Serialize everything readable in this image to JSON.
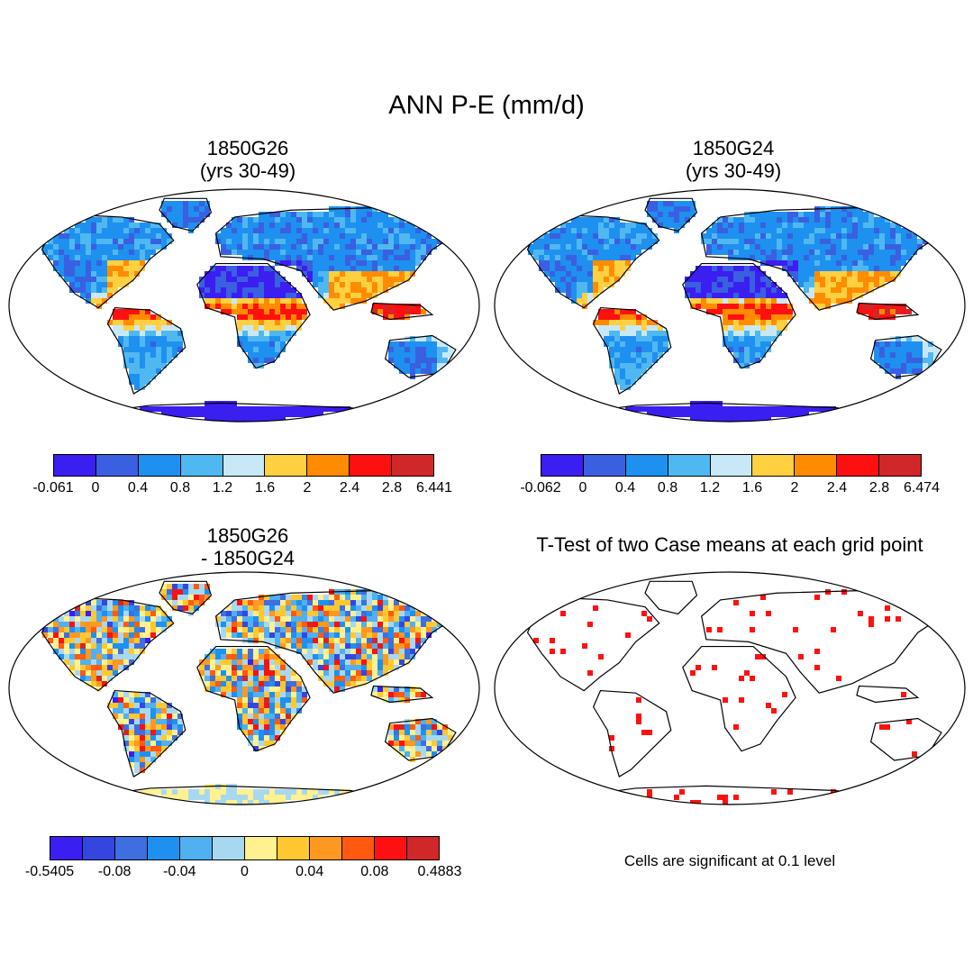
{
  "title": "ANN P-E (mm/d)",
  "panels": [
    {
      "id": "case1",
      "title_line1": "1850G26",
      "title_line2": "(yrs 30-49)"
    },
    {
      "id": "case2",
      "title_line1": "1850G24",
      "title_line2": "(yrs 30-49)"
    },
    {
      "id": "diff",
      "title_line1": "1850G26",
      "title_line2": "- 1850G24"
    },
    {
      "id": "ttest",
      "title_line1": "T-Test of two Case means at each grid point"
    }
  ],
  "colorbars": {
    "case1": {
      "colors": [
        "#3b1ef0",
        "#3a5fe0",
        "#1e90f0",
        "#50b8f0",
        "#c8e8f8",
        "#ffd040",
        "#ff8c00",
        "#ff1010",
        "#d02828"
      ],
      "labels": [
        "-0.061",
        "0",
        "0.4",
        "0.8",
        "1.2",
        "1.6",
        "2",
        "2.4",
        "2.8",
        "6.441"
      ]
    },
    "case2": {
      "colors": [
        "#3b1ef0",
        "#3a5fe0",
        "#1e90f0",
        "#50b8f0",
        "#c8e8f8",
        "#ffd040",
        "#ff8c00",
        "#ff1010",
        "#d02828"
      ],
      "labels": [
        "-0.062",
        "0",
        "0.4",
        "0.8",
        "1.2",
        "1.6",
        "2",
        "2.4",
        "2.8",
        "6.474"
      ]
    },
    "diff": {
      "colors": [
        "#3b1ef0",
        "#3546e0",
        "#3f6ee0",
        "#1e90f0",
        "#50b0f0",
        "#a8d8f0",
        "#fff090",
        "#ffc830",
        "#ff9820",
        "#ff5a10",
        "#ff1010",
        "#d02828"
      ],
      "labels": [
        "-0.5405",
        "-0.08",
        "-0.04",
        "0",
        "0.04",
        "0.08",
        "0.4883"
      ]
    }
  },
  "ttest_note": "Cells are significant at 0.1 level",
  "palette": {
    "ocean": "#ffffff",
    "antarctica_abs": "#3b1ef0",
    "antarctica_diff": "#fff090",
    "significant": "#ff1010",
    "coastline": "#000000"
  }
}
